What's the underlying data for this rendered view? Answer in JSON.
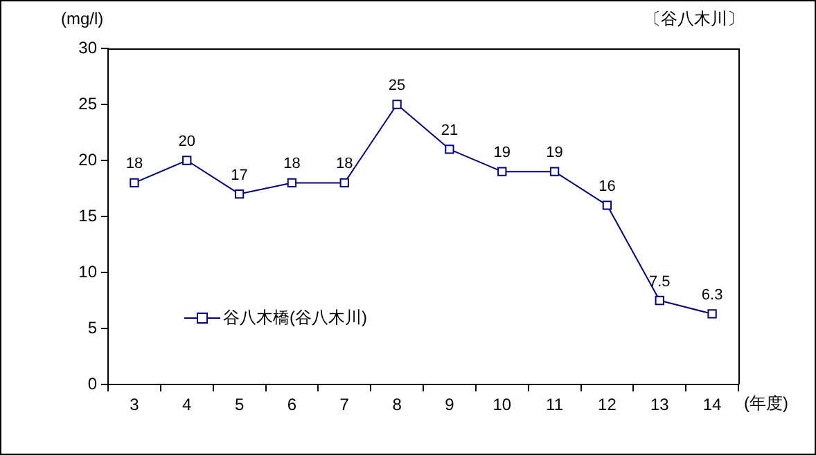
{
  "chart_data": {
    "type": "line",
    "ylabel": "(mg/l)",
    "xlabel": "(年度)",
    "annotations": [
      "〔谷八木川〕"
    ],
    "categories": [
      "3",
      "4",
      "5",
      "6",
      "7",
      "8",
      "9",
      "10",
      "11",
      "12",
      "13",
      "14"
    ],
    "series": [
      {
        "name": "谷八木橋(谷八木川)",
        "color": "#000080",
        "values": [
          18,
          20,
          17,
          18,
          18,
          25,
          21,
          19,
          19,
          16,
          7.5,
          6.3
        ]
      }
    ],
    "ylim": [
      0,
      30
    ],
    "yticks": [
      0,
      5,
      10,
      15,
      20,
      25,
      30
    ],
    "grid": false,
    "legend": "bottom left",
    "marker": "square",
    "line_style": "solid",
    "data_labels": true
  }
}
